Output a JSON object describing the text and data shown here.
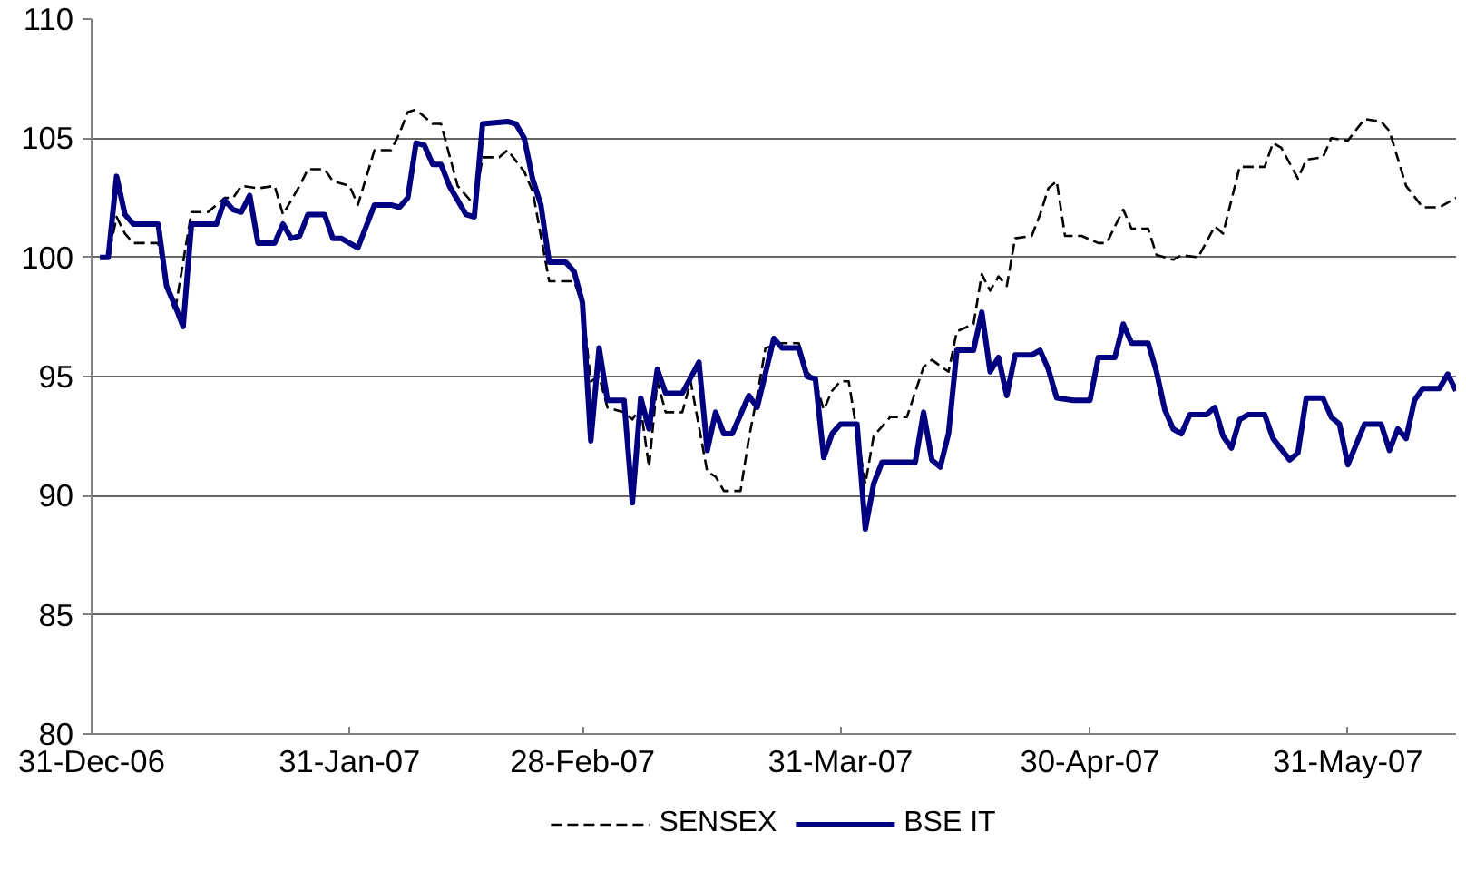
{
  "chart_data": {
    "type": "line",
    "legend": "bottom",
    "grid": "y",
    "ylim": [
      80,
      110
    ],
    "yticks": [
      80,
      85,
      90,
      95,
      100,
      105,
      110
    ],
    "xlim": [
      "2006-12-31",
      "2007-06-13"
    ],
    "xticks": [
      {
        "value": "2006-12-31",
        "label": "31-Dec-06"
      },
      {
        "value": "2007-01-31",
        "label": "31-Jan-07"
      },
      {
        "value": "2007-02-28",
        "label": "28-Feb-07"
      },
      {
        "value": "2007-03-31",
        "label": "31-Mar-07"
      },
      {
        "value": "2007-04-30",
        "label": "30-Apr-07"
      },
      {
        "value": "2007-05-31",
        "label": "31-May-07"
      }
    ],
    "series": [
      {
        "name": "SENSEX",
        "color": "#000000",
        "line_style": "dashed",
        "x": [
          "2007-01-01",
          "2007-01-02",
          "2007-01-03",
          "2007-01-04",
          "2007-01-05",
          "2007-01-08",
          "2007-01-09",
          "2007-01-10",
          "2007-01-12",
          "2007-01-14",
          "2007-01-16",
          "2007-01-17",
          "2007-01-18",
          "2007-01-20",
          "2007-01-22",
          "2007-01-23",
          "2007-01-25",
          "2007-01-26",
          "2007-01-28",
          "2007-01-29",
          "2007-01-31",
          "2007-02-01",
          "2007-02-03",
          "2007-02-05",
          "2007-02-06",
          "2007-02-07",
          "2007-02-08",
          "2007-02-10",
          "2007-02-11",
          "2007-02-13",
          "2007-02-15",
          "2007-02-16",
          "2007-02-18",
          "2007-02-19",
          "2007-02-21",
          "2007-02-22",
          "2007-02-24",
          "2007-02-26",
          "2007-02-27",
          "2007-02-28",
          "2007-03-01",
          "2007-03-02",
          "2007-03-03",
          "2007-03-05",
          "2007-03-06",
          "2007-03-07",
          "2007-03-08",
          "2007-03-09",
          "2007-03-10",
          "2007-03-12",
          "2007-03-13",
          "2007-03-15",
          "2007-03-16",
          "2007-03-17",
          "2007-03-19",
          "2007-03-20",
          "2007-03-21",
          "2007-03-22",
          "2007-03-24",
          "2007-03-26",
          "2007-03-27",
          "2007-03-28",
          "2007-03-29",
          "2007-03-30",
          "2007-03-31",
          "2007-04-01",
          "2007-04-03",
          "2007-04-04",
          "2007-04-06",
          "2007-04-08",
          "2007-04-10",
          "2007-04-11",
          "2007-04-13",
          "2007-04-14",
          "2007-04-16",
          "2007-04-17",
          "2007-04-18",
          "2007-04-19",
          "2007-04-20",
          "2007-04-21",
          "2007-04-23",
          "2007-04-24",
          "2007-04-25",
          "2007-04-26",
          "2007-04-27",
          "2007-04-29",
          "2007-05-01",
          "2007-05-02",
          "2007-05-04",
          "2007-05-05",
          "2007-05-07",
          "2007-05-08",
          "2007-05-10",
          "2007-05-11",
          "2007-05-13",
          "2007-05-15",
          "2007-05-16",
          "2007-05-18",
          "2007-05-21",
          "2007-05-22",
          "2007-05-23",
          "2007-05-25",
          "2007-05-26",
          "2007-05-28",
          "2007-05-29",
          "2007-05-31",
          "2007-06-02",
          "2007-06-04",
          "2007-06-05",
          "2007-06-07",
          "2007-06-09",
          "2007-06-11",
          "2007-06-13"
        ],
        "values": [
          100,
          100,
          101.7,
          101,
          100.6,
          100.6,
          99,
          97.7,
          101.9,
          101.9,
          102.5,
          102.5,
          103,
          102.9,
          103,
          101.8,
          103,
          103.7,
          103.7,
          103.2,
          103,
          102.2,
          104.5,
          104.5,
          105.2,
          106.1,
          106.2,
          105.6,
          105.6,
          103,
          102.2,
          104.2,
          104.2,
          104.5,
          103.6,
          102.8,
          99,
          99,
          99,
          98,
          94.8,
          95,
          93.7,
          93.5,
          93.2,
          93.7,
          91.2,
          94.8,
          93.5,
          93.5,
          94.8,
          91,
          90.8,
          90.2,
          90.2,
          92.4,
          94.2,
          96.2,
          96.4,
          96.4,
          95.2,
          94.8,
          93.6,
          94.4,
          94.8,
          94.8,
          90.5,
          92.5,
          93.3,
          93.3,
          95.4,
          95.7,
          95.2,
          96.9,
          97.2,
          99.3,
          98.6,
          99.2,
          98.8,
          100.8,
          100.9,
          101.8,
          102.9,
          103.2,
          100.9,
          100.9,
          100.6,
          100.6,
          102,
          101.2,
          101.2,
          100.1,
          99.9,
          100.1,
          100,
          101.3,
          101,
          103.8,
          103.8,
          104.8,
          104.6,
          103.3,
          104.1,
          104.2,
          105,
          104.9,
          105.8,
          105.7,
          105.3,
          103,
          102.1,
          102.1,
          102.5
        ]
      },
      {
        "name": "BSE IT",
        "color": "#000080",
        "line_style": "solid",
        "x": [
          "2007-01-01",
          "2007-01-02",
          "2007-01-03",
          "2007-01-04",
          "2007-01-05",
          "2007-01-08",
          "2007-01-09",
          "2007-01-10",
          "2007-01-11",
          "2007-01-12",
          "2007-01-15",
          "2007-01-16",
          "2007-01-17",
          "2007-01-18",
          "2007-01-19",
          "2007-01-20",
          "2007-01-22",
          "2007-01-23",
          "2007-01-24",
          "2007-01-25",
          "2007-01-26",
          "2007-01-28",
          "2007-01-29",
          "2007-01-30",
          "2007-02-01",
          "2007-02-03",
          "2007-02-05",
          "2007-02-06",
          "2007-02-07",
          "2007-02-08",
          "2007-02-09",
          "2007-02-10",
          "2007-02-11",
          "2007-02-12",
          "2007-02-14",
          "2007-02-15",
          "2007-02-16",
          "2007-02-19",
          "2007-02-20",
          "2007-02-21",
          "2007-02-22",
          "2007-02-23",
          "2007-02-24",
          "2007-02-26",
          "2007-02-27",
          "2007-02-28",
          "2007-03-01",
          "2007-03-02",
          "2007-03-03",
          "2007-03-05",
          "2007-03-06",
          "2007-03-07",
          "2007-03-08",
          "2007-03-09",
          "2007-03-10",
          "2007-03-12",
          "2007-03-14",
          "2007-03-15",
          "2007-03-16",
          "2007-03-17",
          "2007-03-18",
          "2007-03-20",
          "2007-03-21",
          "2007-03-23",
          "2007-03-24",
          "2007-03-26",
          "2007-03-27",
          "2007-03-28",
          "2007-03-29",
          "2007-03-30",
          "2007-03-31",
          "2007-04-02",
          "2007-04-03",
          "2007-04-04",
          "2007-04-05",
          "2007-04-09",
          "2007-04-10",
          "2007-04-11",
          "2007-04-12",
          "2007-04-13",
          "2007-04-14",
          "2007-04-16",
          "2007-04-17",
          "2007-04-18",
          "2007-04-19",
          "2007-04-20",
          "2007-04-21",
          "2007-04-23",
          "2007-04-24",
          "2007-04-25",
          "2007-04-26",
          "2007-04-28",
          "2007-04-30",
          "2007-05-01",
          "2007-05-03",
          "2007-05-04",
          "2007-05-05",
          "2007-05-07",
          "2007-05-08",
          "2007-05-09",
          "2007-05-10",
          "2007-05-11",
          "2007-05-12",
          "2007-05-14",
          "2007-05-15",
          "2007-05-16",
          "2007-05-17",
          "2007-05-18",
          "2007-05-19",
          "2007-05-21",
          "2007-05-22",
          "2007-05-24",
          "2007-05-25",
          "2007-05-26",
          "2007-05-28",
          "2007-05-29",
          "2007-05-30",
          "2007-05-31",
          "2007-06-02",
          "2007-06-04",
          "2007-06-05",
          "2007-06-06",
          "2007-06-07",
          "2007-06-08",
          "2007-06-09",
          "2007-06-11",
          "2007-06-12",
          "2007-06-13"
        ],
        "values": [
          100,
          100,
          103.4,
          101.8,
          101.4,
          101.4,
          98.8,
          98,
          97.1,
          101.4,
          101.4,
          102.4,
          102,
          101.9,
          102.6,
          100.6,
          100.6,
          101.4,
          100.8,
          100.9,
          101.8,
          101.8,
          100.8,
          100.8,
          100.4,
          102.2,
          102.2,
          102.1,
          102.5,
          104.8,
          104.7,
          103.9,
          103.9,
          103,
          101.8,
          101.7,
          105.6,
          105.7,
          105.6,
          105,
          103.3,
          102.2,
          99.8,
          99.8,
          99.4,
          98.1,
          92.3,
          96.2,
          94,
          94,
          89.7,
          94.1,
          92.8,
          95.3,
          94.3,
          94.3,
          95.6,
          91.9,
          93.5,
          92.6,
          92.6,
          94.2,
          93.7,
          96.6,
          96.2,
          96.2,
          95,
          94.9,
          91.6,
          92.6,
          93,
          93,
          88.6,
          90.5,
          91.4,
          91.4,
          93.5,
          91.5,
          91.2,
          92.6,
          96.1,
          96.1,
          97.7,
          95.2,
          95.8,
          94.2,
          95.9,
          95.9,
          96.1,
          95.3,
          94.1,
          94,
          94,
          95.8,
          95.8,
          97.2,
          96.4,
          96.4,
          95.2,
          93.6,
          92.8,
          92.6,
          93.4,
          93.4,
          93.7,
          92.5,
          92,
          93.2,
          93.4,
          93.4,
          92.4,
          91.5,
          91.8,
          94.1,
          94.1,
          93.3,
          93,
          91.3,
          93,
          93,
          91.9,
          92.8,
          92.4,
          94,
          94.5,
          94.5,
          95.1,
          94.4
        ]
      }
    ]
  }
}
